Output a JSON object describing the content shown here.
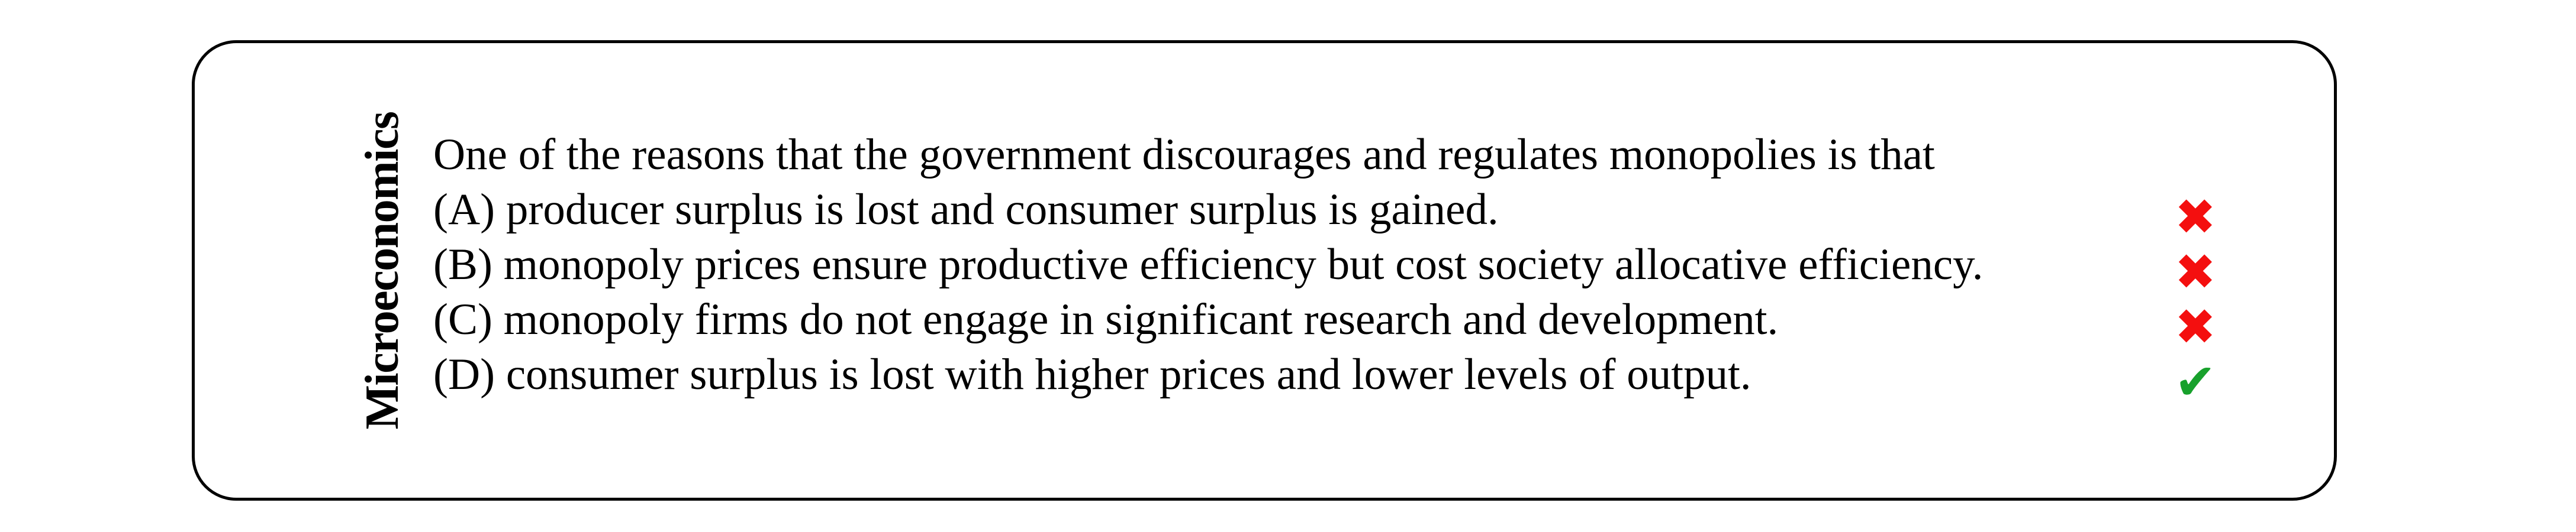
{
  "panel": {
    "category_label": "Microeconomics",
    "question": "One of the reasons that the government discourages and regulates monopolies is that",
    "options": [
      {
        "key": "A",
        "text": "(A) producer surplus is lost and consumer surplus is gained.",
        "verdict": "incorrect",
        "mark": {
          "glyph": "✖",
          "color": "#f40f0f",
          "name": "red-cross"
        }
      },
      {
        "key": "B",
        "text": "(B) monopoly prices ensure productive efficiency but cost society allocative efficiency.",
        "verdict": "incorrect",
        "mark": {
          "glyph": "✖",
          "color": "#f40f0f",
          "name": "red-cross"
        }
      },
      {
        "key": "C",
        "text": "(C) monopoly firms do not engage in significant research and development.",
        "verdict": "incorrect",
        "mark": {
          "glyph": "✖",
          "color": "#f40f0f",
          "name": "red-cross"
        }
      },
      {
        "key": "D",
        "text": "(D) consumer surplus is lost with higher prices and lower levels of output.",
        "verdict": "correct",
        "mark": {
          "glyph": "✔",
          "color": "#18a12c",
          "name": "green-check"
        }
      }
    ],
    "colors": {
      "border": "#000000",
      "text": "#000000",
      "incorrect_mark": "#f40f0f",
      "correct_mark": "#18a12c"
    }
  }
}
